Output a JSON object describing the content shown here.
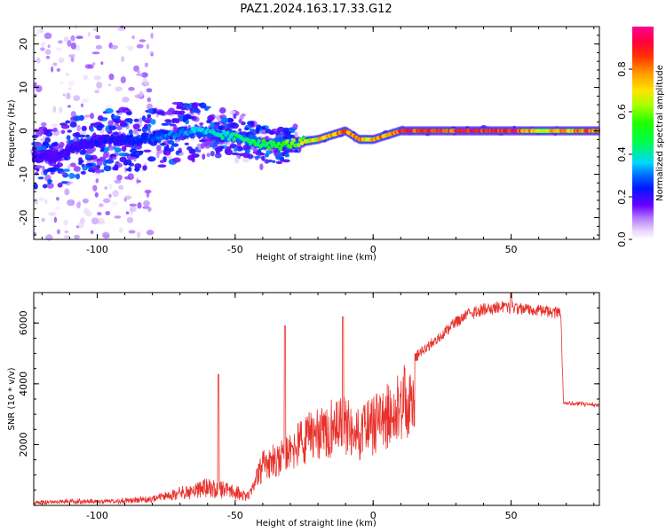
{
  "title": "PAZ1.2024.163.17.33.G12",
  "chart_data": [
    {
      "type": "heatmap",
      "xlabel": "Height of straight line (km)",
      "ylabel": "Frequency (Hz)",
      "xlim": [
        -123,
        82
      ],
      "ylim": [
        -25,
        24
      ],
      "x_ticks": [
        -100,
        -50,
        0,
        50
      ],
      "y_ticks": [
        -20,
        -10,
        0,
        10,
        20
      ],
      "colorbar": {
        "label": "Normalized spectral amplitude",
        "range": [
          0.0,
          1.0
        ],
        "ticks": [
          0.0,
          0.2,
          0.4,
          0.6,
          0.8
        ],
        "colormap": "gist_ncar-like rainbow (white-violet-blue-cyan-green-yellow-orange-red-magenta)"
      },
      "ridge_frequency_hz": [
        {
          "x": -115,
          "y": -6
        },
        {
          "x": -105,
          "y": -3
        },
        {
          "x": -95,
          "y": -2
        },
        {
          "x": -85,
          "y": -2
        },
        {
          "x": -75,
          "y": -1
        },
        {
          "x": -65,
          "y": 0
        },
        {
          "x": -55,
          "y": -1
        },
        {
          "x": -45,
          "y": -2
        },
        {
          "x": -40,
          "y": -3
        },
        {
          "x": -35,
          "y": -3.5
        },
        {
          "x": -30,
          "y": -3
        },
        {
          "x": -25,
          "y": -2.5
        },
        {
          "x": -20,
          "y": -2
        },
        {
          "x": -15,
          "y": -1
        },
        {
          "x": -10,
          "y": 0
        },
        {
          "x": -5,
          "y": -2
        },
        {
          "x": 0,
          "y": -2
        },
        {
          "x": 5,
          "y": -1
        },
        {
          "x": 10,
          "y": 0
        },
        {
          "x": 30,
          "y": 0
        },
        {
          "x": 50,
          "y": 0
        },
        {
          "x": 70,
          "y": 0
        },
        {
          "x": 82,
          "y": 0
        }
      ],
      "ridge_amplitude": [
        {
          "x": -115,
          "v": 0.2
        },
        {
          "x": -90,
          "v": 0.25
        },
        {
          "x": -70,
          "v": 0.35
        },
        {
          "x": -50,
          "v": 0.45
        },
        {
          "x": -35,
          "v": 0.55
        },
        {
          "x": -20,
          "v": 0.75
        },
        {
          "x": -10,
          "v": 0.85
        },
        {
          "x": 0,
          "v": 0.8
        },
        {
          "x": 10,
          "v": 0.95
        },
        {
          "x": 50,
          "v": 1.0
        },
        {
          "x": 60,
          "v": 0.75
        },
        {
          "x": 82,
          "v": 0.9
        }
      ]
    },
    {
      "type": "line",
      "xlabel": "Height of straight line (km)",
      "ylabel": "SNR (10 * v/v)",
      "xlim": [
        -123,
        82
      ],
      "ylim": [
        0,
        7000
      ],
      "x_ticks": [
        -100,
        -50,
        0,
        50
      ],
      "y_ticks": [
        2000,
        4000,
        6000
      ],
      "color": "#e8312b",
      "envelope": [
        {
          "x": -123,
          "y": 150
        },
        {
          "x": -110,
          "y": 200
        },
        {
          "x": -100,
          "y": 180
        },
        {
          "x": -90,
          "y": 250
        },
        {
          "x": -80,
          "y": 300
        },
        {
          "x": -70,
          "y": 600
        },
        {
          "x": -60,
          "y": 900
        },
        {
          "x": -50,
          "y": 700
        },
        {
          "x": -45,
          "y": 400
        },
        {
          "x": -40,
          "y": 1800
        },
        {
          "x": -35,
          "y": 2100
        },
        {
          "x": -30,
          "y": 2500
        },
        {
          "x": -25,
          "y": 2900
        },
        {
          "x": -20,
          "y": 3300
        },
        {
          "x": -15,
          "y": 3500
        },
        {
          "x": -10,
          "y": 3600
        },
        {
          "x": -5,
          "y": 3200
        },
        {
          "x": 0,
          "y": 3600
        },
        {
          "x": 5,
          "y": 4000
        },
        {
          "x": 10,
          "y": 4500
        },
        {
          "x": 15,
          "y": 5000
        },
        {
          "x": 20,
          "y": 5400
        },
        {
          "x": 25,
          "y": 5800
        },
        {
          "x": 30,
          "y": 6200
        },
        {
          "x": 35,
          "y": 6500
        },
        {
          "x": 40,
          "y": 6650
        },
        {
          "x": 45,
          "y": 6700
        },
        {
          "x": 50,
          "y": 6700
        },
        {
          "x": 55,
          "y": 6650
        },
        {
          "x": 60,
          "y": 6650
        },
        {
          "x": 65,
          "y": 6550
        },
        {
          "x": 68,
          "y": 6500
        },
        {
          "x": 69,
          "y": 3400
        },
        {
          "x": 75,
          "y": 3400
        },
        {
          "x": 82,
          "y": 3350
        }
      ],
      "spikes": [
        {
          "x": -56,
          "y": 4300
        },
        {
          "x": -32,
          "y": 5900
        },
        {
          "x": -11,
          "y": 6200
        },
        {
          "x": 50,
          "y": 7000
        }
      ]
    }
  ]
}
